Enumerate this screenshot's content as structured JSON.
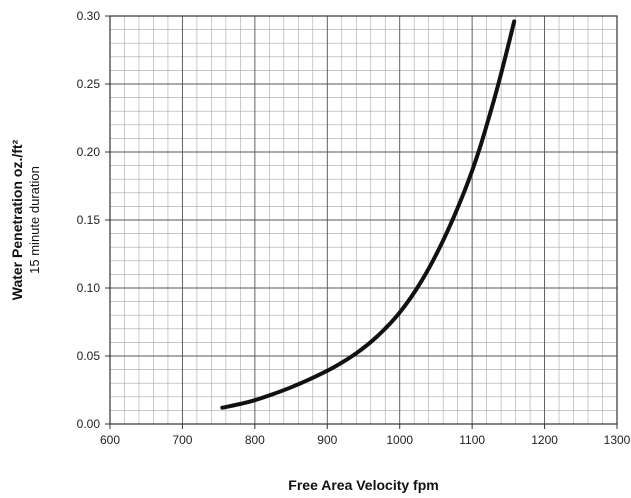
{
  "chart_data": {
    "type": "line",
    "xlabel": "Free Area Velocity fpm",
    "ylabel": "Water Penetration oz./ft²",
    "ylabel_sub": "15 minute duration",
    "xlim": [
      600,
      1300
    ],
    "ylim": [
      0,
      0.3
    ],
    "x_ticks": [
      600,
      700,
      800,
      900,
      1000,
      1100,
      1200,
      1300
    ],
    "y_ticks": [
      0.0,
      0.05,
      0.1,
      0.15,
      0.2,
      0.25,
      0.3
    ],
    "x_tick_labels": [
      "600",
      "700",
      "800",
      "900",
      "1000",
      "1100",
      "1200",
      "1300"
    ],
    "y_tick_labels": [
      "0.00",
      "0.05",
      "0.10",
      "0.15",
      "0.20",
      "0.25",
      "0.30"
    ],
    "minor_x_step": 20,
    "minor_y_step": 0.01,
    "grid": true,
    "line_color": "#111111",
    "series": [
      {
        "x": [
          755,
          790,
          820,
          850,
          880,
          910,
          940,
          970,
          1000,
          1030,
          1060,
          1090,
          1110,
          1130,
          1145,
          1158
        ],
        "y": [
          0.012,
          0.016,
          0.021,
          0.027,
          0.034,
          0.042,
          0.052,
          0.065,
          0.082,
          0.105,
          0.135,
          0.172,
          0.202,
          0.238,
          0.268,
          0.296
        ]
      }
    ]
  }
}
